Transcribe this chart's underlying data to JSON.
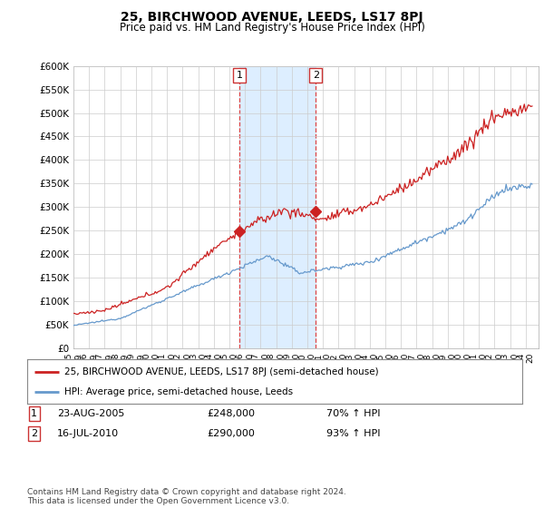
{
  "title": "25, BIRCHWOOD AVENUE, LEEDS, LS17 8PJ",
  "subtitle": "Price paid vs. HM Land Registry's House Price Index (HPI)",
  "ylabel_ticks": [
    "£0",
    "£50K",
    "£100K",
    "£150K",
    "£200K",
    "£250K",
    "£300K",
    "£350K",
    "£400K",
    "£450K",
    "£500K",
    "£550K",
    "£600K"
  ],
  "ylim": [
    0,
    600000
  ],
  "xlim_start": 1995.0,
  "xlim_end": 2024.83,
  "sale1_x": 2005.644,
  "sale1_y": 248000,
  "sale1_label": "1",
  "sale2_x": 2010.538,
  "sale2_y": 290000,
  "sale2_label": "2",
  "shade_color": "#ddeeff",
  "hpi_line_color": "#6699cc",
  "property_line_color": "#cc2222",
  "legend_property": "25, BIRCHWOOD AVENUE, LEEDS, LS17 8PJ (semi-detached house)",
  "legend_hpi": "HPI: Average price, semi-detached house, Leeds",
  "table_row1": [
    "1",
    "23-AUG-2005",
    "£248,000",
    "70% ↑ HPI"
  ],
  "table_row2": [
    "2",
    "16-JUL-2010",
    "£290,000",
    "93% ↑ HPI"
  ],
  "footnote": "Contains HM Land Registry data © Crown copyright and database right 2024.\nThis data is licensed under the Open Government Licence v3.0.",
  "background_color": "#ffffff",
  "grid_color": "#cccccc"
}
